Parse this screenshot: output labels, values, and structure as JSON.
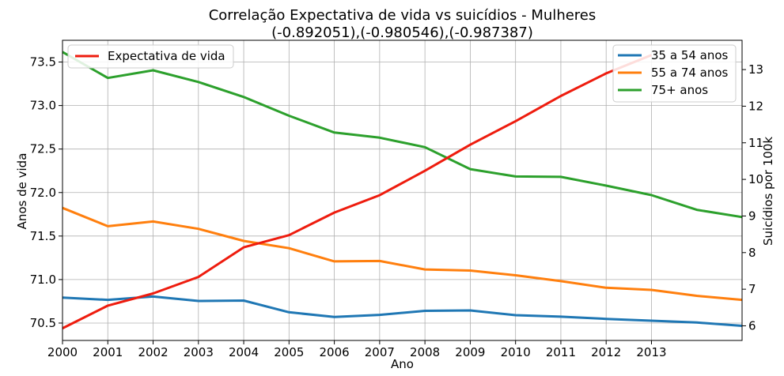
{
  "chart_data": {
    "type": "line",
    "title": "Correlação Expectativa de vida vs suicídios - Mulheres",
    "subtitle": "(-0.892051),(-0.980546),(-0.987387)",
    "xlabel": "Ano",
    "ylabel_left": "Anos de vida",
    "ylabel_right": "Suicídios por 100k",
    "x": [
      2000,
      2001,
      2002,
      2003,
      2004,
      2005,
      2006,
      2007,
      2008,
      2009,
      2010,
      2011,
      2012,
      2013,
      2014,
      2015
    ],
    "x_ticks": [
      "2000",
      "2001",
      "2002",
      "2003",
      "2004",
      "2005",
      "2006",
      "2007",
      "2008",
      "2009",
      "2010",
      "2011",
      "2012",
      "2013"
    ],
    "xlim": [
      2000,
      2015
    ],
    "ylim_left": [
      70.3,
      73.75
    ],
    "yticks_left": [
      "70.5",
      "71.0",
      "71.5",
      "72.0",
      "72.5",
      "73.0",
      "73.5"
    ],
    "ylim_right": [
      5.6,
      13.8
    ],
    "yticks_right": [
      "6",
      "7",
      "8",
      "9",
      "10",
      "11",
      "12",
      "13"
    ],
    "grid": true,
    "series_left": [
      {
        "name": "Expectativa de vida",
        "color": "#ee1c0e",
        "values": [
          70.44,
          70.7,
          70.84,
          71.03,
          71.37,
          71.51,
          71.77,
          71.97,
          72.25,
          72.55,
          72.82,
          73.11,
          73.37,
          73.58,
          null,
          null
        ]
      }
    ],
    "series_right": [
      {
        "name": "35 a 54 anos",
        "color": "#1f77b4",
        "values": [
          6.77,
          6.71,
          6.8,
          6.68,
          6.69,
          6.37,
          6.24,
          6.3,
          6.41,
          6.42,
          6.29,
          6.25,
          6.19,
          6.14,
          6.09,
          6.0
        ]
      },
      {
        "name": "55 a 74 anos",
        "color": "#ff7f0e",
        "values": [
          9.22,
          8.72,
          8.85,
          8.65,
          8.32,
          8.12,
          7.76,
          7.77,
          7.54,
          7.51,
          7.38,
          7.22,
          7.04,
          6.98,
          6.82,
          6.71
        ]
      },
      {
        "name": "75+ anos",
        "color": "#2ca02c",
        "values": [
          13.48,
          12.77,
          12.98,
          12.66,
          12.25,
          11.74,
          11.28,
          11.14,
          10.88,
          10.28,
          10.08,
          10.07,
          9.83,
          9.57,
          9.17,
          8.97
        ]
      }
    ],
    "legend_left_position": "upper-left",
    "legend_right_position": "upper-right"
  }
}
